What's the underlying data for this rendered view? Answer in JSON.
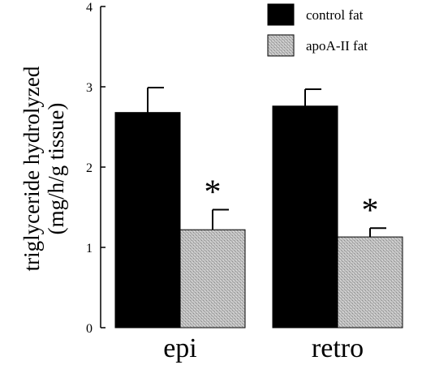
{
  "chart_data": {
    "type": "bar",
    "title": "",
    "xlabel": "",
    "ylabel": "triglyceride hydrolyzed (mg/h/g tissue)",
    "ylabel_lines": [
      "triglyceride hydrolyzed",
      "(mg/h/g tissue)"
    ],
    "categories": [
      "epi",
      "retro"
    ],
    "ylim": [
      0,
      4
    ],
    "yticks": [
      "0",
      "1",
      "2",
      "3",
      "4"
    ],
    "legend_position": "top-right",
    "grid": false,
    "series": [
      {
        "name": "control fat",
        "values": [
          2.68,
          2.76
        ],
        "errors": [
          0.31,
          0.21
        ],
        "color": "#000000"
      },
      {
        "name": "apoA-II fat",
        "values": [
          1.22,
          1.13
        ],
        "errors": [
          0.25,
          0.11
        ],
        "color": "#b3b3b3"
      }
    ],
    "annotations": [
      {
        "text": "*",
        "series": 1,
        "category": 0
      },
      {
        "text": "*",
        "series": 1,
        "category": 1
      }
    ]
  }
}
